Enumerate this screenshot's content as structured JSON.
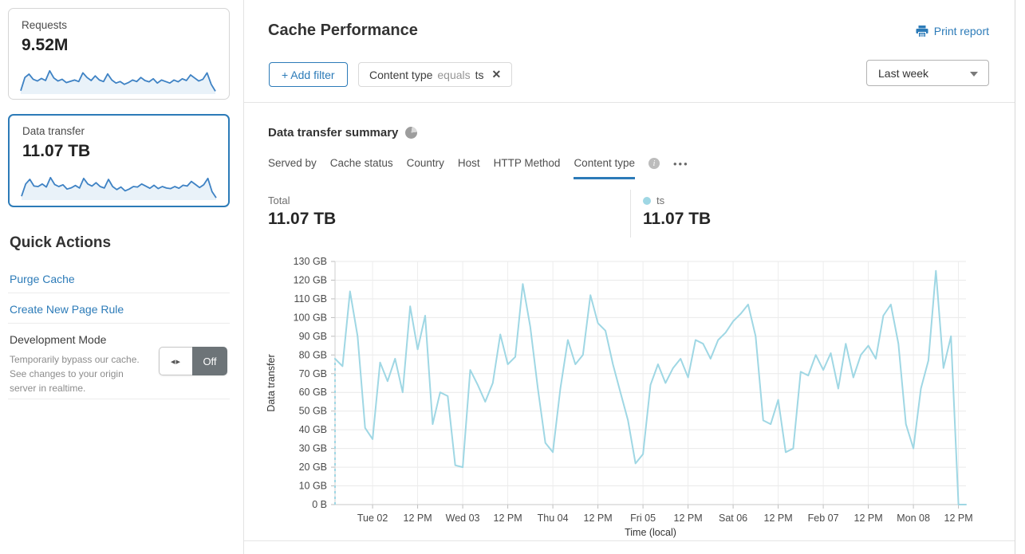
{
  "sidebar": {
    "cards": [
      {
        "label": "Requests",
        "value": "9.52M",
        "selected": false,
        "sparkline": [
          10,
          62,
          75,
          55,
          48,
          58,
          50,
          88,
          60,
          48,
          55,
          42,
          47,
          52,
          46,
          80,
          62,
          50,
          68,
          52,
          46,
          76,
          52,
          40,
          46,
          35,
          42,
          52,
          46,
          62,
          50,
          45,
          57,
          40,
          52,
          46,
          40,
          52,
          45,
          57,
          50,
          72,
          60,
          48,
          55,
          80,
          35,
          8
        ]
      },
      {
        "label": "Data transfer",
        "value": "11.07 TB",
        "selected": true,
        "sparkline": [
          12,
          60,
          78,
          52,
          50,
          60,
          48,
          85,
          58,
          50,
          57,
          40,
          45,
          54,
          44,
          82,
          60,
          52,
          65,
          50,
          44,
          78,
          50,
          38,
          48,
          33,
          40,
          50,
          48,
          60,
          52,
          43,
          55,
          42,
          50,
          44,
          42,
          50,
          43,
          55,
          52,
          70,
          58,
          46,
          57,
          82,
          30,
          6
        ]
      }
    ],
    "quick_actions": {
      "title": "Quick Actions",
      "links": [
        {
          "label": "Purge Cache"
        },
        {
          "label": "Create New Page Rule"
        }
      ],
      "development_mode": {
        "label": "Development Mode",
        "description": "Temporarily bypass our cache. See changes to your origin server in realtime.",
        "toggle_state": "Off"
      }
    }
  },
  "header": {
    "title": "Cache Performance",
    "print_report_label": "Print report",
    "add_filter_label": "+ Add filter",
    "filter_chip": {
      "field": "Content type",
      "operator": "equals",
      "value": "ts"
    },
    "time_range": "Last week"
  },
  "summary": {
    "title": "Data transfer summary",
    "tabs": [
      {
        "label": "Served by",
        "selected": false
      },
      {
        "label": "Cache status",
        "selected": false
      },
      {
        "label": "Country",
        "selected": false
      },
      {
        "label": "Host",
        "selected": false
      },
      {
        "label": "HTTP Method",
        "selected": false
      },
      {
        "label": "Content type",
        "selected": true
      }
    ],
    "total_label": "Total",
    "total_value": "11.07 TB",
    "series_legend": {
      "name": "ts",
      "value": "11.07 TB",
      "color": "#9fd7e4"
    }
  },
  "chart_data": {
    "type": "line",
    "xlabel": "Time (local)",
    "ylabel": "Data transfer",
    "unit": "GB",
    "ylim": [
      0,
      130
    ],
    "y_ticks": [
      "0 B",
      "10 GB",
      "20 GB",
      "30 GB",
      "40 GB",
      "50 GB",
      "60 GB",
      "70 GB",
      "80 GB",
      "90 GB",
      "100 GB",
      "110 GB",
      "120 GB",
      "130 GB"
    ],
    "x_tick_labels": [
      "Tue 02",
      "12 PM",
      "Wed 03",
      "12 PM",
      "Thu 04",
      "12 PM",
      "Fri 05",
      "12 PM",
      "Sat 06",
      "12 PM",
      "Feb 07",
      "12 PM",
      "Mon 08",
      "12 PM"
    ],
    "x_tick_hours": [
      10,
      22,
      34,
      46,
      58,
      70,
      82,
      94,
      106,
      118,
      130,
      142,
      154,
      166
    ],
    "hours_span": 168,
    "step_hours": 2,
    "grid": true,
    "dashed_start": true,
    "series": [
      {
        "name": "ts",
        "color": "#9fd7e4",
        "values_gb": [
          78,
          74,
          114,
          90,
          41,
          35,
          76,
          66,
          78,
          60,
          106,
          83,
          101,
          43,
          60,
          58,
          21,
          20,
          72,
          64,
          55,
          65,
          91,
          75,
          79,
          118,
          95,
          62,
          33,
          28,
          62,
          88,
          75,
          80,
          112,
          97,
          93,
          75,
          60,
          45,
          22,
          27,
          64,
          75,
          65,
          73,
          78,
          68,
          88,
          86,
          78,
          88,
          92,
          98,
          102,
          107,
          90,
          45,
          43,
          56,
          28,
          30,
          71,
          69,
          80,
          72,
          81,
          62,
          86,
          68,
          80,
          85,
          78,
          101,
          107,
          86,
          43,
          30,
          62,
          77,
          125,
          73,
          90,
          0,
          0
        ]
      }
    ]
  },
  "colors": {
    "accent": "#2c7bb8",
    "series": "#9fd7e4",
    "sparkline_line": "#3e82c4",
    "sparkline_fill": "#e9f2f9"
  },
  "icons": {
    "close_glyph": "✕",
    "more_glyph": "•••",
    "toggle_arrows_glyph": "◂▸",
    "info_glyph": "i"
  }
}
